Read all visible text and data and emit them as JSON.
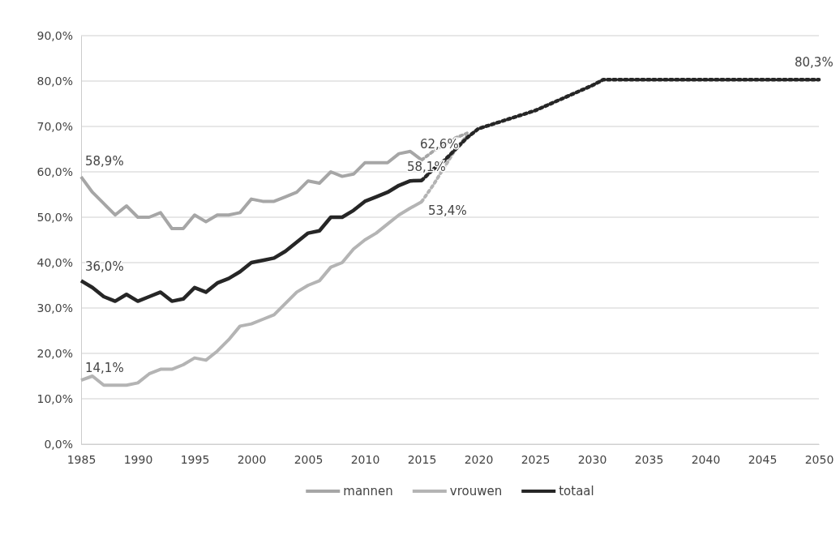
{
  "chart_data": {
    "type": "line",
    "x": [
      1985,
      1986,
      1987,
      1988,
      1989,
      1990,
      1991,
      1992,
      1993,
      1994,
      1995,
      1996,
      1997,
      1998,
      1999,
      2000,
      2001,
      2002,
      2003,
      2004,
      2005,
      2006,
      2007,
      2008,
      2009,
      2010,
      2011,
      2012,
      2013,
      2014,
      2015
    ],
    "series": [
      {
        "name": "mannen",
        "color": "#a6a6a6",
        "values": [
          58.9,
          55.5,
          53,
          50.5,
          52.5,
          50,
          50,
          51,
          47.5,
          47.5,
          50.5,
          49,
          50.5,
          50.5,
          51,
          54,
          53.5,
          53.5,
          54.5,
          55.5,
          58,
          57.5,
          60,
          59,
          59.5,
          62,
          62,
          62,
          64,
          64.5,
          62.6
        ]
      },
      {
        "name": "vrouwen",
        "color": "#b4b4b4",
        "values": [
          14.1,
          15,
          13,
          13,
          13,
          13.5,
          15.5,
          16.5,
          16.5,
          17.5,
          19,
          18.5,
          20.5,
          23,
          26,
          26.5,
          27.5,
          28.5,
          31,
          33.5,
          35,
          36,
          39,
          40,
          43,
          45,
          46.5,
          48.5,
          50.5,
          52,
          53.4
        ]
      },
      {
        "name": "totaal",
        "color": "#262626",
        "values": [
          36.0,
          34.5,
          32.5,
          31.5,
          33,
          31.5,
          32.5,
          33.5,
          31.5,
          32,
          34.5,
          33.5,
          35.5,
          36.5,
          38,
          40,
          40.5,
          41,
          42.5,
          44.5,
          46.5,
          47,
          50,
          50,
          51.5,
          53.5,
          54.5,
          55.5,
          57,
          58,
          58.1
        ]
      },
      {
        "color": "#a6a6a6",
        "line_style": "dotted",
        "x": [
          2015,
          2016,
          2017,
          2018,
          2019
        ],
        "values": [
          62.6,
          64.5,
          66,
          67.5,
          68.5
        ]
      },
      {
        "color": "#b4b4b4",
        "line_style": "dotted",
        "x": [
          2015,
          2016,
          2017,
          2018,
          2019
        ],
        "values": [
          53.4,
          57,
          61,
          65,
          68
        ]
      },
      {
        "color": "#262626",
        "line_style": "dotted",
        "x": [
          2015,
          2016,
          2017,
          2018,
          2019,
          2020,
          2025,
          2030,
          2031,
          2050
        ],
        "values": [
          58.1,
          60.5,
          62.5,
          65,
          67.5,
          69.5,
          73.5,
          79,
          80.3,
          80.3
        ]
      }
    ],
    "xlim": [
      1985,
      2050
    ],
    "xticks": [
      1985,
      1990,
      1995,
      2000,
      2005,
      2010,
      2015,
      2020,
      2025,
      2030,
      2035,
      2040,
      2045,
      2050
    ],
    "ylim": [
      0,
      90
    ],
    "yticks": [
      {
        "value": 0,
        "label": "0,0%"
      },
      {
        "value": 10,
        "label": "10,0%"
      },
      {
        "value": 20,
        "label": "20,0%"
      },
      {
        "value": 30,
        "label": "30,0%"
      },
      {
        "value": 40,
        "label": "40,0%"
      },
      {
        "value": 50,
        "label": "50,0%"
      },
      {
        "value": 60,
        "label": "60,0%"
      },
      {
        "value": 70,
        "label": "70,0%"
      },
      {
        "value": 80,
        "label": "80,0%"
      },
      {
        "value": 90,
        "label": "90,0%"
      }
    ],
    "grid": "y",
    "legend": "bottom",
    "line_style": "solid",
    "marker": "none",
    "annotations": [
      {
        "text": "58,9%",
        "x": 1985,
        "y": 58.9
      },
      {
        "text": "36,0%",
        "x": 1985,
        "y": 36.0
      },
      {
        "text": "14,1%",
        "x": 1985,
        "y": 14.1
      },
      {
        "text": "62,6%",
        "x": 2015,
        "y": 62.6
      },
      {
        "text": "58,1%",
        "x": 2015,
        "y": 58.1
      },
      {
        "text": "53,4%",
        "x": 2015,
        "y": 53.4
      },
      {
        "text": "80,3%",
        "x": 2050,
        "y": 80.3
      }
    ]
  }
}
